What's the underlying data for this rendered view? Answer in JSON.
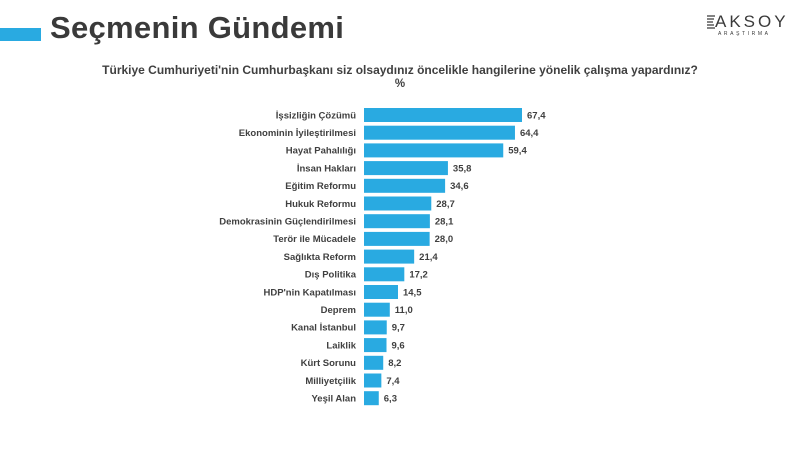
{
  "header": {
    "title": "Seçmenin Gündemi",
    "logo_main": "AKSOY",
    "logo_sub": "ARAŞTIRMA"
  },
  "colors": {
    "accent": "#29aae1",
    "bar": "#29aae1",
    "title_text": "#3a3a3a",
    "body_text": "#404040"
  },
  "chart_data": {
    "type": "bar",
    "orientation": "horizontal",
    "title": "Türkiye Cumhuriyeti'nin Cumhurbaşkanı siz olsaydınız öncelikle hangilerine yönelik çalışma yapardınız?",
    "unit": "%",
    "categories": [
      "İşsizliğin Çözümü",
      "Ekonominin İyileştirilmesi",
      "Hayat Pahalılığı",
      "İnsan Hakları",
      "Eğitim Reformu",
      "Hukuk Reformu",
      "Demokrasinin Güçlendirilmesi",
      "Terör ile Mücadele",
      "Sağlıkta Reform",
      "Dış Politika",
      "HDP'nin Kapatılması",
      "Deprem",
      "Kanal İstanbul",
      "Laiklik",
      "Kürt Sorunu",
      "Milliyetçilik",
      "Yeşil Alan"
    ],
    "values": [
      67.4,
      64.4,
      59.4,
      35.8,
      34.6,
      28.7,
      28.1,
      28.0,
      21.4,
      17.2,
      14.5,
      11.0,
      9.7,
      9.6,
      8.2,
      7.4,
      6.3
    ],
    "value_labels": [
      "67,4",
      "64,4",
      "59,4",
      "35,8",
      "34,6",
      "28,7",
      "28,1",
      "28,0",
      "21,4",
      "17,2",
      "14,5",
      "11,0",
      "9,7",
      "9,6",
      "8,2",
      "7,4",
      "6,3"
    ],
    "xlim": [
      0,
      67.4
    ],
    "grid": false,
    "legend": "none"
  }
}
